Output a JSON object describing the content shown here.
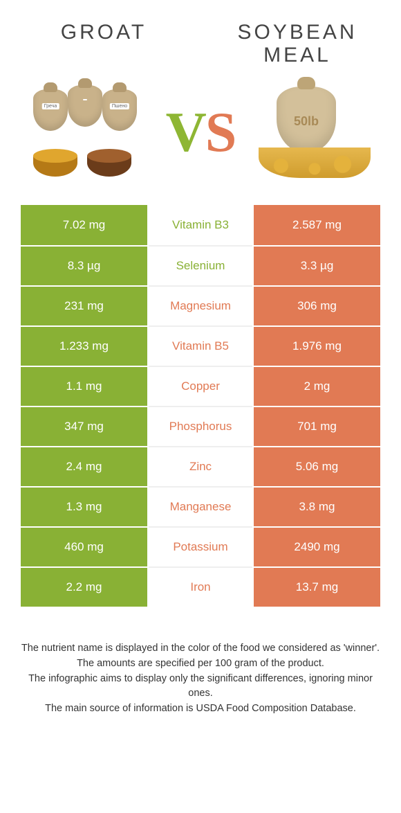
{
  "colors": {
    "left": "#89b135",
    "right": "#e17a54",
    "mid_text_left": "#89b135",
    "mid_text_right": "#e17a54",
    "vs_v": "#8eb634",
    "vs_s": "#e17a54"
  },
  "header": {
    "left_title": "GROAT",
    "right_title": "SOYBEAN MEAL",
    "vs_v": "V",
    "vs_s": "S",
    "left_sack_labels": [
      "Греча",
      "",
      "Пшено"
    ],
    "right_sack_label": "50lb"
  },
  "rows": [
    {
      "left": "7.02 mg",
      "name": "Vitamin B3",
      "right": "2.587 mg",
      "winner": "left"
    },
    {
      "left": "8.3 µg",
      "name": "Selenium",
      "right": "3.3 µg",
      "winner": "left"
    },
    {
      "left": "231 mg",
      "name": "Magnesium",
      "right": "306 mg",
      "winner": "right"
    },
    {
      "left": "1.233 mg",
      "name": "Vitamin B5",
      "right": "1.976 mg",
      "winner": "right"
    },
    {
      "left": "1.1 mg",
      "name": "Copper",
      "right": "2 mg",
      "winner": "right"
    },
    {
      "left": "347 mg",
      "name": "Phosphorus",
      "right": "701 mg",
      "winner": "right"
    },
    {
      "left": "2.4 mg",
      "name": "Zinc",
      "right": "5.06 mg",
      "winner": "right"
    },
    {
      "left": "1.3 mg",
      "name": "Manganese",
      "right": "3.8 mg",
      "winner": "right"
    },
    {
      "left": "460 mg",
      "name": "Potassium",
      "right": "2490 mg",
      "winner": "right"
    },
    {
      "left": "2.2 mg",
      "name": "Iron",
      "right": "13.7 mg",
      "winner": "right"
    }
  ],
  "footer": {
    "l1": "The nutrient name is displayed in the color of the food we considered as 'winner'.",
    "l2": "The amounts are specified per 100 gram of the product.",
    "l3": "The infographic aims to display only the significant differences, ignoring minor ones.",
    "l4": "The main source of information is USDA Food Composition Database."
  }
}
